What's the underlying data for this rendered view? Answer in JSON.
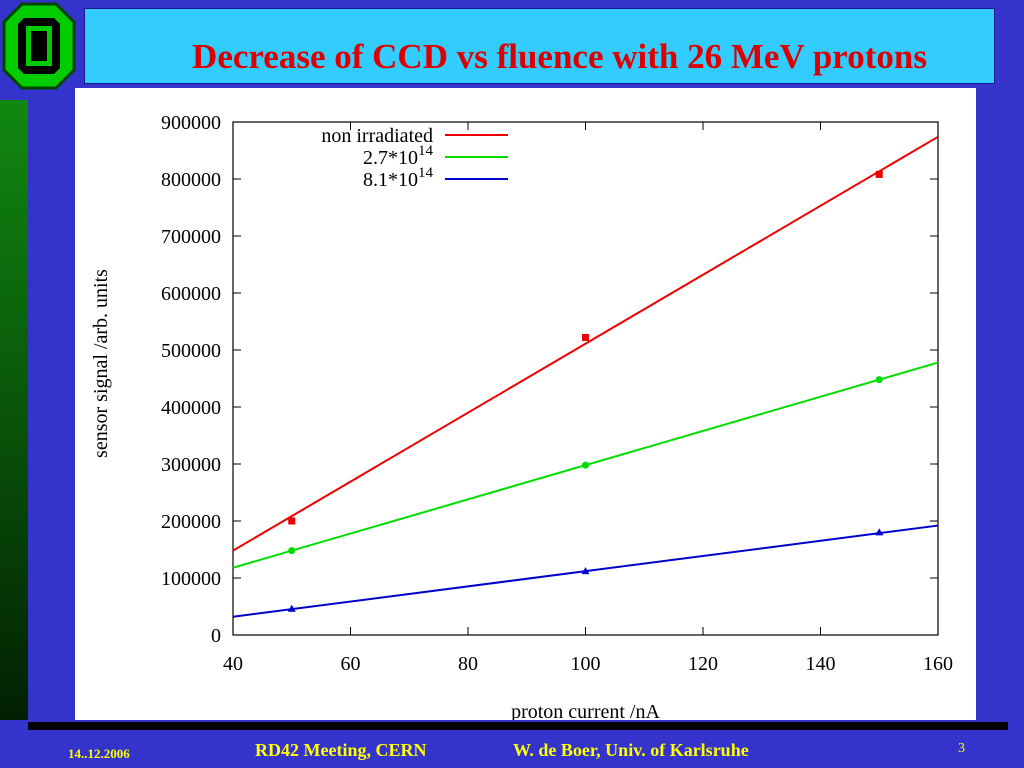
{
  "title": "Decrease of CCD vs fluence with 26 MeV protons",
  "footer": {
    "date": "14..12.2006",
    "meeting": "RD42 Meeting, CERN",
    "author": "W. de Boer, Univ. of Karlsruhe",
    "page": "3"
  },
  "colors": {
    "background": "#3434cc",
    "title_box": "#33ccff",
    "title_text": "#dd0000",
    "footer_text": "#ffff00"
  },
  "chart_data": {
    "type": "scatter",
    "xlabel": "proton current /nA",
    "ylabel": "sensor signal /arb. units",
    "xlim": [
      40,
      160
    ],
    "ylim": [
      0,
      900000
    ],
    "xticks": [
      40,
      60,
      80,
      100,
      120,
      140,
      160
    ],
    "yticks": [
      0,
      100000,
      200000,
      300000,
      400000,
      500000,
      600000,
      700000,
      800000,
      900000
    ],
    "grid": false,
    "legend_position": "top-left",
    "series": [
      {
        "name": "non irradiated",
        "name_base": "non irradiated",
        "name_exp": "",
        "color": "#ee0000",
        "marker": "square",
        "x": [
          50,
          100,
          150
        ],
        "y": [
          200000,
          522000,
          808000
        ],
        "fit": {
          "x": [
            40,
            160
          ],
          "y": [
            148000,
            874000
          ]
        }
      },
      {
        "name": "2.7*10^14",
        "name_base": "2.7*10",
        "name_exp": "14",
        "color": "#00dd00",
        "marker": "circle",
        "x": [
          50,
          100,
          150
        ],
        "y": [
          148000,
          298000,
          448000
        ],
        "fit": {
          "x": [
            40,
            160
          ],
          "y": [
            118000,
            478000
          ]
        }
      },
      {
        "name": "8.1*10^14",
        "name_base": "8.1*10",
        "name_exp": "14",
        "color": "#0000cc",
        "marker": "triangle",
        "x": [
          50,
          100,
          150
        ],
        "y": [
          46000,
          112000,
          180000
        ],
        "fit": {
          "x": [
            40,
            160
          ],
          "y": [
            32000,
            192000
          ]
        }
      }
    ]
  }
}
